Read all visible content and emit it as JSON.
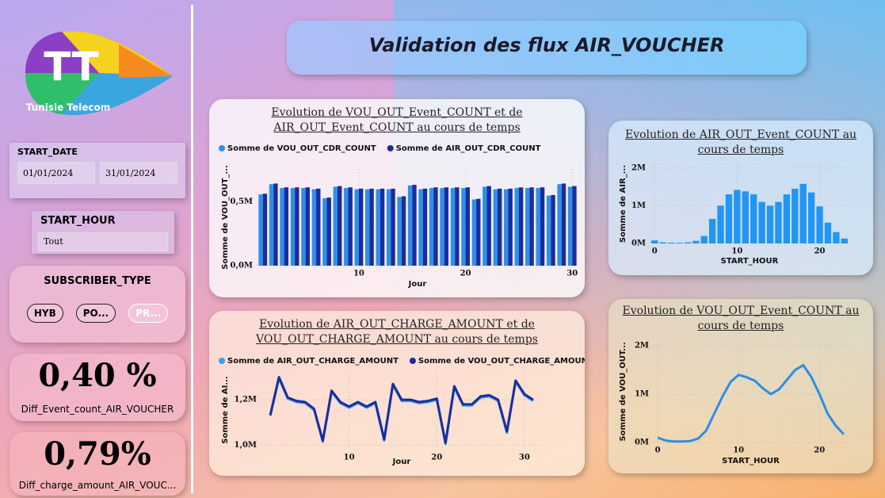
{
  "header": {
    "title": "Validation des flux AIR_VOUCHER"
  },
  "logo": {
    "mark": "TT",
    "name": "Tunisie Telecom"
  },
  "slicers": {
    "start_date": {
      "label": "START_DATE",
      "from": "01/01/2024",
      "to": "31/01/2024"
    },
    "start_hour": {
      "label": "START_HOUR",
      "value": "Tout"
    },
    "subscriber_type": {
      "label": "SUBSCRIBER_TYPE",
      "options": [
        "HYB",
        "PO...",
        "PR..."
      ]
    }
  },
  "cards": [
    {
      "value": "0,40 %",
      "label": "Diff_Event_count_AIR_VOUCHER"
    },
    {
      "value": "0,79%",
      "label": "Diff_charge_amount_AIR_VOUC..."
    }
  ],
  "chart_data": [
    {
      "type": "bar",
      "title": "Evolution de VOU_OUT_Event_COUNT et de AIR_OUT_Event_COUNT au cours de temps",
      "x_label": "Jour",
      "y_label": "Somme de VOU_OUT_...",
      "x": [
        1,
        2,
        3,
        4,
        5,
        6,
        7,
        8,
        9,
        10,
        11,
        12,
        13,
        14,
        15,
        16,
        17,
        18,
        19,
        20,
        21,
        22,
        23,
        24,
        25,
        26,
        27,
        28,
        29,
        30
      ],
      "series": [
        {
          "name": "Somme de VOU_OUT_CDR_COUNT",
          "color": "#2f8fe8",
          "values": [
            560000,
            640000,
            610000,
            610000,
            610000,
            600000,
            530000,
            620000,
            610000,
            600000,
            600000,
            600000,
            600000,
            540000,
            630000,
            600000,
            610000,
            610000,
            610000,
            610000,
            520000,
            620000,
            600000,
            600000,
            610000,
            610000,
            610000,
            550000,
            640000,
            620000
          ]
        },
        {
          "name": "Somme de AIR_OUT_CDR_COUNT",
          "color": "#1a2d9c",
          "values": [
            565000,
            645000,
            615000,
            615000,
            615000,
            605000,
            535000,
            625000,
            615000,
            605000,
            605000,
            605000,
            605000,
            545000,
            635000,
            605000,
            615000,
            615000,
            615000,
            615000,
            525000,
            625000,
            605000,
            605000,
            615000,
            615000,
            615000,
            555000,
            645000,
            625000
          ]
        }
      ],
      "xlim": [
        0.5,
        30.5
      ],
      "xticks": [
        10,
        20,
        30
      ],
      "ylim": [
        0,
        760000
      ],
      "yticks": [
        {
          "value": 0,
          "label": "0,0M"
        },
        {
          "value": 500000,
          "label": "0,5M"
        }
      ],
      "grid": true
    },
    {
      "type": "line",
      "title": "Evolution de AIR_OUT_CHARGE_AMOUNT et de VOU_OUT_CHARGE_AMOUNT au cours de temps",
      "x_label": "Jour",
      "y_label": "Somme de AI...",
      "x": [
        1,
        2,
        3,
        4,
        5,
        6,
        7,
        8,
        9,
        10,
        11,
        12,
        13,
        14,
        15,
        16,
        17,
        18,
        19,
        20,
        21,
        22,
        23,
        24,
        25,
        26,
        27,
        28,
        29,
        30,
        31
      ],
      "series": [
        {
          "name": "Somme de AIR_OUT_CHARGE_AMOUNT",
          "color": "#3a9ff0",
          "values": [
            1128000,
            1295000,
            1205000,
            1190000,
            1185000,
            1155000,
            1015000,
            1235000,
            1185000,
            1165000,
            1185000,
            1165000,
            1185000,
            1020000,
            1265000,
            1195000,
            1195000,
            1185000,
            1190000,
            1200000,
            1005000,
            1255000,
            1175000,
            1175000,
            1210000,
            1215000,
            1195000,
            1055000,
            1280000,
            1220000,
            1195000
          ]
        },
        {
          "name": "Somme de VOU_OUT_CHARGE_AMOUNT",
          "color": "#1a2d9c",
          "values": [
            1133000,
            1300000,
            1210000,
            1195000,
            1190000,
            1160000,
            1020000,
            1240000,
            1190000,
            1170000,
            1190000,
            1170000,
            1190000,
            1025000,
            1270000,
            1200000,
            1200000,
            1190000,
            1195000,
            1205000,
            1010000,
            1260000,
            1180000,
            1180000,
            1215000,
            1220000,
            1200000,
            1060000,
            1285000,
            1225000,
            1200000
          ]
        }
      ],
      "xlim": [
        0,
        32
      ],
      "xticks": [
        10,
        20,
        30
      ],
      "ylim": [
        980000,
        1330000
      ],
      "yticks": [
        {
          "value": 1000000,
          "label": "1,0M"
        },
        {
          "value": 1200000,
          "label": "1,2M"
        }
      ],
      "grid": true
    },
    {
      "type": "bar",
      "title": "Evolution de AIR_OUT_Event_COUNT au cours de temps",
      "x_label": "START_HOUR",
      "y_label": "Somme de AIR_...",
      "color": "#2196f3",
      "x": [
        0,
        1,
        2,
        3,
        4,
        5,
        6,
        7,
        8,
        9,
        10,
        11,
        12,
        13,
        14,
        15,
        16,
        17,
        18,
        19,
        20,
        21,
        22,
        23
      ],
      "values": [
        80000,
        30000,
        20000,
        20000,
        30000,
        70000,
        200000,
        650000,
        1000000,
        1300000,
        1420000,
        1380000,
        1300000,
        1100000,
        1000000,
        1100000,
        1300000,
        1450000,
        1580000,
        1350000,
        980000,
        550000,
        300000,
        130000
      ],
      "xlim": [
        -0.5,
        23.5
      ],
      "xticks": [
        0,
        10,
        20
      ],
      "ylim": [
        0,
        2100000
      ],
      "yticks": [
        {
          "value": 0,
          "label": "0M"
        },
        {
          "value": 1000000,
          "label": "1M"
        },
        {
          "value": 2000000,
          "label": "2M"
        }
      ],
      "grid": true
    },
    {
      "type": "line",
      "title": "Evolution de VOU_OUT_Event_COUNT au cours de temps",
      "x_label": "START_HOUR",
      "y_label": "Somme de VOU_OUT...",
      "color": "#2a8fe6",
      "x": [
        0,
        1,
        2,
        3,
        4,
        5,
        6,
        7,
        8,
        9,
        10,
        11,
        12,
        13,
        14,
        15,
        16,
        17,
        18,
        19,
        20,
        21,
        22,
        23
      ],
      "values": [
        100000,
        40000,
        20000,
        20000,
        30000,
        80000,
        250000,
        600000,
        950000,
        1250000,
        1400000,
        1350000,
        1280000,
        1120000,
        1000000,
        1100000,
        1300000,
        1500000,
        1600000,
        1350000,
        1000000,
        600000,
        350000,
        170000
      ],
      "xlim": [
        -0.5,
        23.5
      ],
      "xticks": [
        0,
        10,
        20
      ],
      "ylim": [
        0,
        2100000
      ],
      "yticks": [
        {
          "value": 0,
          "label": "0M"
        },
        {
          "value": 1000000,
          "label": "1M"
        },
        {
          "value": 2000000,
          "label": "2M"
        }
      ],
      "grid": true
    }
  ]
}
